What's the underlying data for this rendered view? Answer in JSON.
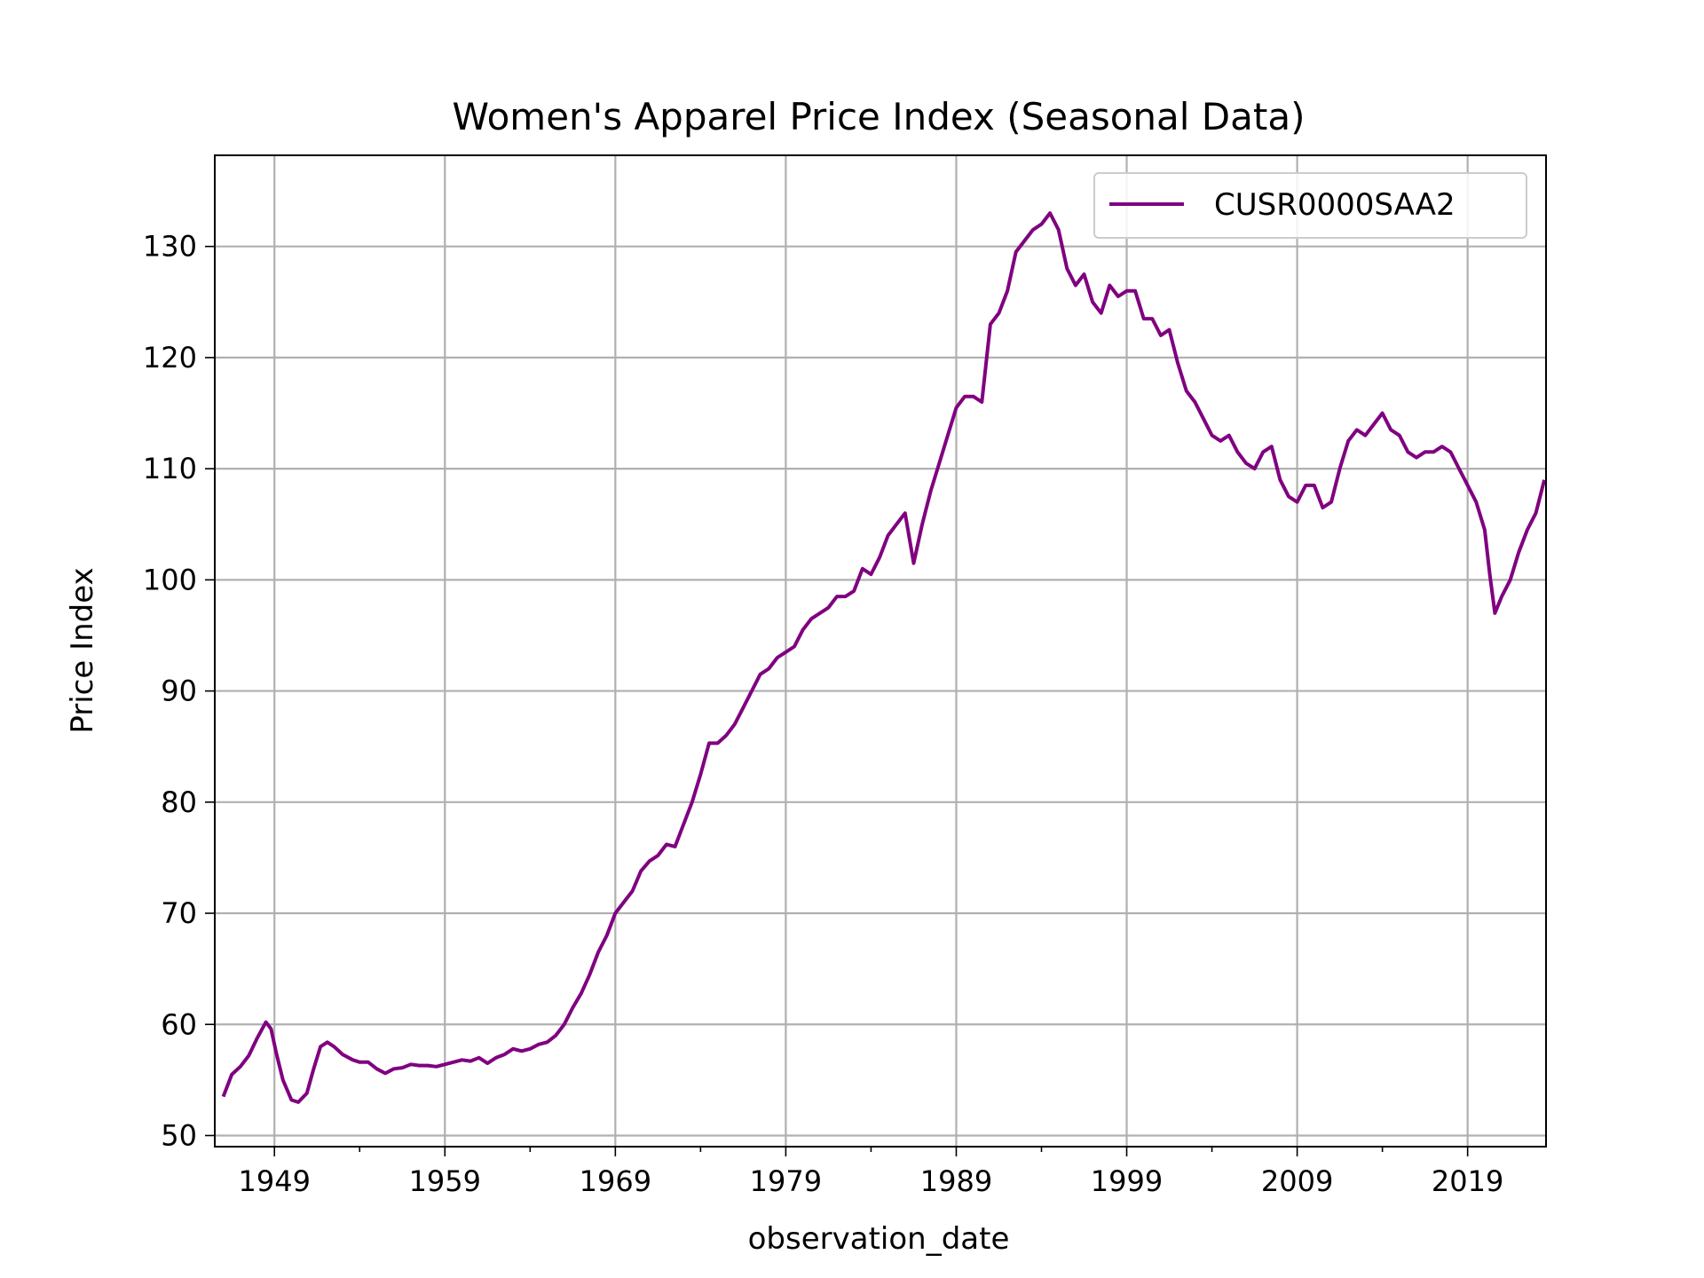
{
  "chart_data": {
    "type": "line",
    "title": "Women's Apparel Price Index (Seasonal Data)",
    "xlabel": "observation_date",
    "ylabel": "Price Index",
    "xlim": [
      1945.5,
      2023.6
    ],
    "ylim": [
      49.0,
      138.2
    ],
    "x_ticks": [
      1949,
      1959,
      1969,
      1979,
      1989,
      1999,
      2009,
      2019
    ],
    "x_tick_labels": [
      "1949",
      "1959",
      "1969",
      "1979",
      "1989",
      "1999",
      "2009",
      "2019"
    ],
    "x_minor_ticks": [
      1954,
      1964,
      1974,
      1984,
      1994,
      2004,
      2014
    ],
    "y_ticks": [
      50,
      60,
      70,
      80,
      90,
      100,
      110,
      120,
      130
    ],
    "y_tick_labels": [
      "50",
      "60",
      "70",
      "80",
      "90",
      "100",
      "110",
      "120",
      "130"
    ],
    "grid": true,
    "legend": {
      "position": "top-right",
      "entries": [
        "CUSR0000SAA2"
      ]
    },
    "series": [
      {
        "name": "CUSR0000SAA2",
        "color": "#800080",
        "x": [
          1946.0,
          1946.5,
          1947.0,
          1947.5,
          1948.0,
          1948.5,
          1948.8,
          1949.1,
          1949.5,
          1950.0,
          1950.4,
          1950.9,
          1951.3,
          1951.7,
          1952.1,
          1952.5,
          1953.0,
          1953.6,
          1954.0,
          1954.5,
          1955.0,
          1955.5,
          1956.0,
          1956.5,
          1957.0,
          1957.5,
          1958.0,
          1958.5,
          1959.0,
          1959.5,
          1960.0,
          1960.5,
          1961.0,
          1961.5,
          1962.0,
          1962.5,
          1963.0,
          1963.5,
          1964.0,
          1964.5,
          1965.0,
          1965.5,
          1966.0,
          1966.5,
          1967.0,
          1967.5,
          1968.0,
          1968.5,
          1969.0,
          1969.5,
          1970.0,
          1970.5,
          1971.0,
          1971.5,
          1972.0,
          1972.5,
          1973.0,
          1973.5,
          1974.0,
          1974.5,
          1975.0,
          1975.5,
          1976.0,
          1976.5,
          1977.0,
          1977.5,
          1978.0,
          1978.5,
          1979.0,
          1979.5,
          1980.0,
          1980.5,
          1981.0,
          1981.5,
          1982.0,
          1982.5,
          1983.0,
          1983.5,
          1984.0,
          1984.5,
          1985.0,
          1985.5,
          1986.0,
          1986.5,
          1987.0,
          1987.5,
          1988.0,
          1988.5,
          1989.0,
          1989.5,
          1990.0,
          1990.5,
          1991.0,
          1991.5,
          1992.0,
          1992.5,
          1993.0,
          1993.5,
          1994.0,
          1994.5,
          1995.0,
          1995.5,
          1996.0,
          1996.5,
          1997.0,
          1997.5,
          1998.0,
          1998.5,
          1999.0,
          1999.5,
          2000.0,
          2000.5,
          2001.0,
          2001.5,
          2002.0,
          2002.5,
          2003.0,
          2003.5,
          2004.0,
          2004.5,
          2005.0,
          2005.5,
          2006.0,
          2006.5,
          2007.0,
          2007.5,
          2008.0,
          2008.5,
          2009.0,
          2009.5,
          2010.0,
          2010.5,
          2011.0,
          2011.5,
          2012.0,
          2012.5,
          2013.0,
          2013.5,
          2014.0,
          2014.5,
          2015.0,
          2015.5,
          2016.0,
          2016.5,
          2017.0,
          2017.5,
          2018.0,
          2018.5,
          2019.0,
          2019.5,
          2020.0,
          2020.3,
          2020.6,
          2021.0,
          2021.5,
          2022.0,
          2022.5,
          2023.0,
          2023.5
        ],
        "values": [
          53.5,
          55.5,
          56.2,
          57.2,
          58.8,
          60.2,
          59.6,
          57.5,
          55.0,
          53.2,
          53.0,
          53.8,
          56.0,
          58.0,
          58.4,
          58.0,
          57.3,
          56.8,
          56.6,
          56.6,
          56.0,
          55.6,
          56.0,
          56.1,
          56.4,
          56.3,
          56.3,
          56.2,
          56.4,
          56.6,
          56.8,
          56.7,
          57.0,
          56.5,
          57.0,
          57.3,
          57.8,
          57.6,
          57.8,
          58.2,
          58.4,
          59.0,
          60.0,
          61.5,
          62.8,
          64.5,
          66.5,
          68.0,
          70.0,
          71.0,
          72.0,
          73.8,
          74.7,
          75.2,
          76.2,
          76.0,
          78.0,
          80.0,
          82.5,
          85.3,
          85.3,
          86.0,
          87.0,
          88.5,
          90.0,
          91.5,
          92.0,
          93.0,
          93.5,
          94.0,
          95.5,
          96.5,
          97.0,
          97.5,
          98.5,
          98.5,
          99.0,
          101.0,
          100.5,
          102.0,
          104.0,
          105.0,
          106.0,
          101.5,
          105.0,
          108.0,
          110.5,
          113.0,
          115.5,
          116.5,
          116.5,
          116.0,
          123.0,
          124.0,
          126.0,
          129.5,
          130.5,
          131.5,
          132.0,
          133.0,
          131.5,
          128.0,
          126.5,
          127.5,
          125.0,
          124.0,
          126.5,
          125.5,
          126.0,
          126.0,
          123.5,
          123.5,
          122.0,
          122.5,
          119.5,
          117.0,
          116.0,
          114.5,
          113.0,
          112.5,
          113.0,
          111.5,
          110.5,
          110.0,
          111.5,
          112.0,
          109.0,
          107.5,
          107.0,
          108.5,
          108.5,
          106.5,
          107.0,
          110.0,
          112.5,
          113.5,
          113.0,
          114.0,
          115.0,
          113.5,
          113.0,
          111.5,
          111.0,
          111.5,
          111.5,
          112.0,
          111.5,
          110.0,
          108.5,
          107.0,
          104.5,
          100.5,
          97.0,
          98.5,
          100.0,
          102.5,
          104.5,
          106.0,
          109.0
        ]
      }
    ]
  }
}
